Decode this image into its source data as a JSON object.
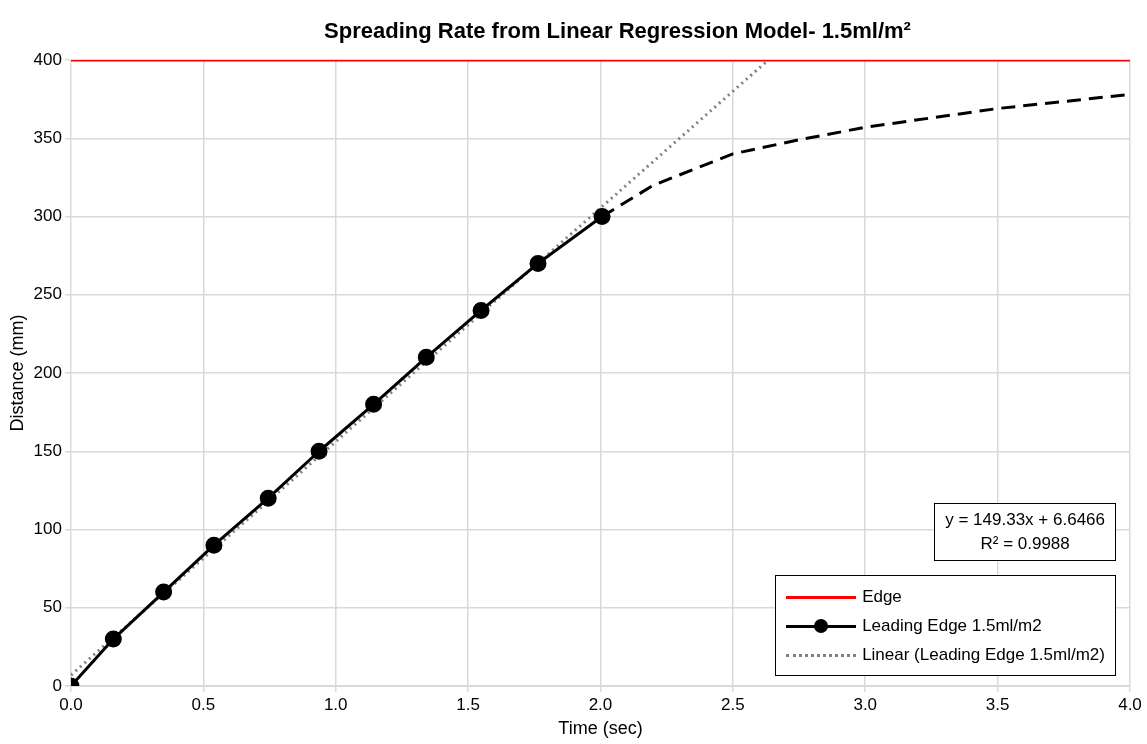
{
  "chart_data": {
    "type": "line",
    "title": "Spreading Rate from Linear Regression Model- 1.5ml/m²",
    "xlabel": "Time (sec)",
    "ylabel": "Distance (mm)",
    "series": [
      {
        "name": "Edge",
        "color": "#ff0000",
        "x": [
          0,
          4
        ],
        "values": [
          400,
          400
        ],
        "marker": "none",
        "line_style": "solid"
      },
      {
        "name": "Leading Edge 1.5ml/m2",
        "color": "#000000",
        "x": [
          0,
          0.16,
          0.35,
          0.54,
          0.745,
          0.937,
          1.143,
          1.342,
          1.549,
          1.764,
          2.006
        ],
        "values": [
          0,
          30,
          60,
          90,
          120,
          150,
          180,
          210,
          240,
          270,
          300
        ],
        "marker": "circle",
        "line_style": "solid"
      },
      {
        "name": "Linear (Leading Edge 1.5ml/m2)",
        "color": "#808080",
        "x": [
          0,
          2.634
        ],
        "values": [
          7,
          400
        ],
        "marker": "none",
        "line_style": "dotted"
      },
      {
        "color": "#000000",
        "x": [
          2.006,
          2.2,
          2.5,
          2.75,
          3.0,
          3.5,
          4.0
        ],
        "values": [
          300,
          320,
          340,
          349,
          357,
          369,
          378
        ],
        "marker": "none",
        "line_style": "dashed"
      }
    ],
    "xlim": [
      0,
      4
    ],
    "xticks": [
      {
        "value": 0,
        "label": "0.0"
      },
      {
        "value": 0.5,
        "label": "0.5"
      },
      {
        "value": 1,
        "label": "1.0"
      },
      {
        "value": 1.5,
        "label": "1.5"
      },
      {
        "value": 2,
        "label": "2.0"
      },
      {
        "value": 2.5,
        "label": "2.5"
      },
      {
        "value": 3,
        "label": "3.0"
      },
      {
        "value": 3.5,
        "label": "3.5"
      },
      {
        "value": 4,
        "label": "4.0"
      }
    ],
    "ylim": [
      0,
      400
    ],
    "yticks": [
      0,
      50,
      100,
      150,
      200,
      250,
      300,
      350,
      400
    ],
    "grid": true,
    "legend": "bottom right",
    "annotations": [
      "y = 149.33x + 6.6466",
      "R² = 0.9988"
    ]
  }
}
